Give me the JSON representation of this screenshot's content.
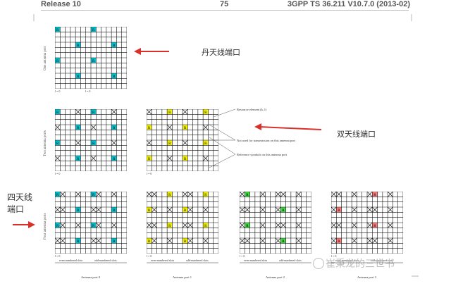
{
  "header": {
    "release": "Release 10",
    "page_number": "75",
    "spec": "3GPP TS 36.211 V10.7.0 (2013-02)"
  },
  "colors": {
    "port0": "#00c2d1",
    "port1": "#f3f300",
    "port2": "#3fdc3f",
    "port3": "#ff7a7a",
    "arrow": "#d9302a"
  },
  "axis_labels": {
    "one_port": "One antenna port",
    "two_ports": "Two antenna ports",
    "four_ports": "Four antenna ports"
  },
  "l_index": "l = 0",
  "annotations": {
    "resource_element": "Resource element (k, l)",
    "not_used": "Not used for transmission on this antenna port",
    "reference_symbols": "Reference symbols on this antenna port"
  },
  "slot_labels": {
    "even": "even-numbered slots",
    "odd": "odd-numbered slots"
  },
  "captions": [
    "Antenna port 0",
    "Antenna port 1",
    "Antenna port 2",
    "Antenna port 3"
  ],
  "chinese_labels": {
    "single": "丹天线端口",
    "dual": "双天线端口",
    "quad_line1": "四天线",
    "quad_line2": "端口"
  },
  "ref_symbols": {
    "port0": "R",
    "port1": "R",
    "port2": "R",
    "port3": "R"
  },
  "watermark": "崔秉龙的三世书"
}
